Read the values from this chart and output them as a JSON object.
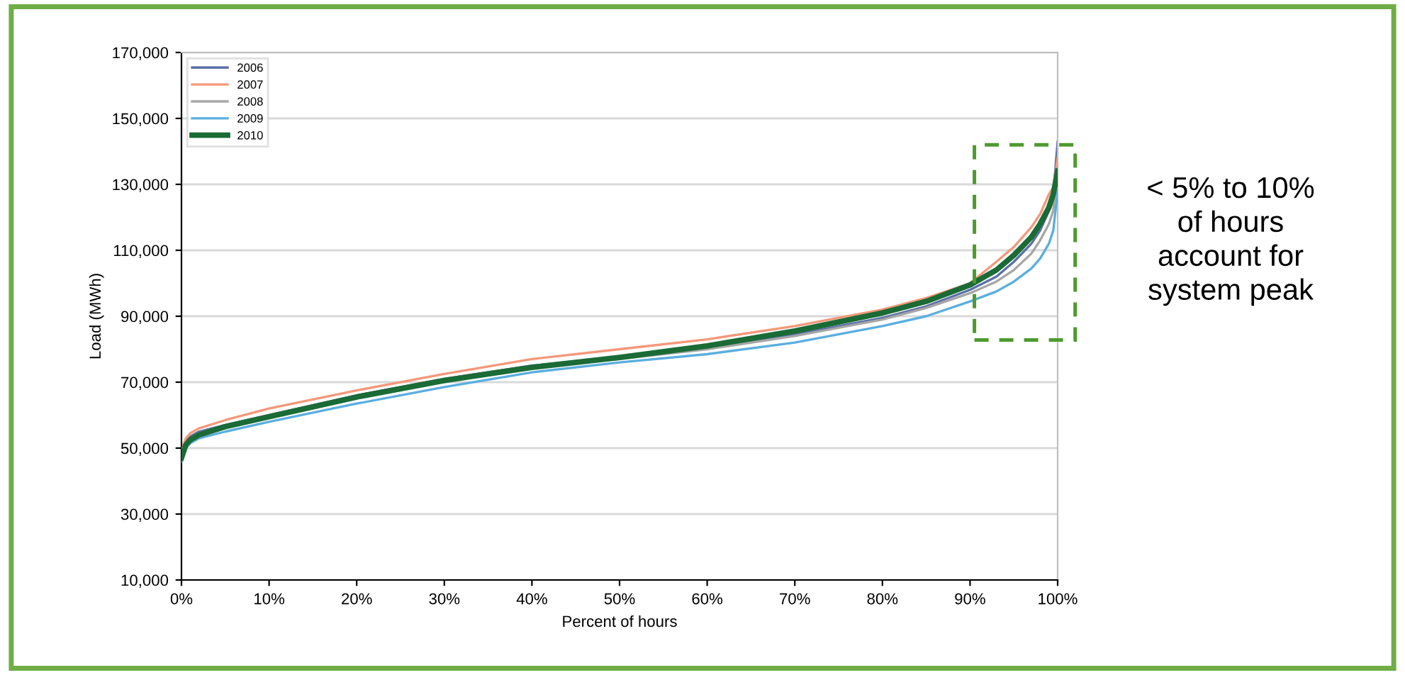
{
  "chart_data": {
    "type": "line",
    "xlabel": "Percent of hours",
    "ylabel": "Load (MWh)",
    "x": [
      0,
      0.5,
      1,
      2,
      5,
      10,
      20,
      30,
      40,
      50,
      60,
      70,
      80,
      85,
      90,
      93,
      95,
      97,
      98,
      99,
      99.5,
      100
    ],
    "series": [
      {
        "name": "2006",
        "color": "#5b6fa8",
        "values": [
          48000,
          52000,
          53500,
          55000,
          57000,
          60000,
          66000,
          71000,
          75000,
          77500,
          80500,
          84500,
          89500,
          93000,
          98000,
          102000,
          106500,
          112000,
          116000,
          122000,
          127000,
          143000
        ]
      },
      {
        "name": "2007",
        "color": "#f4987a",
        "values": [
          49000,
          53000,
          54500,
          56000,
          58500,
          62000,
          67500,
          72500,
          77000,
          80000,
          83000,
          87000,
          92000,
          95500,
          100000,
          106500,
          111000,
          117000,
          121000,
          127000,
          129000,
          138000
        ]
      },
      {
        "name": "2008",
        "color": "#a6a6a6",
        "values": [
          47500,
          51500,
          53000,
          54500,
          56500,
          60000,
          65500,
          70500,
          74500,
          77000,
          80000,
          84000,
          89000,
          92500,
          97000,
          100500,
          104000,
          109000,
          113000,
          118000,
          122000,
          135000
        ]
      },
      {
        "name": "2009",
        "color": "#5aaee0",
        "values": [
          46000,
          50000,
          51500,
          53000,
          55000,
          58000,
          63500,
          68500,
          73000,
          76000,
          78500,
          82000,
          87000,
          90000,
          94500,
          97500,
          100500,
          104500,
          107500,
          112000,
          116000,
          128000
        ]
      },
      {
        "name": "2010",
        "color": "#1a6b35",
        "values": [
          47000,
          51000,
          52500,
          54000,
          56500,
          59500,
          65500,
          70500,
          74500,
          77500,
          81000,
          85500,
          91000,
          94500,
          99500,
          104000,
          108500,
          114000,
          118000,
          123000,
          127000,
          134000
        ]
      }
    ],
    "xlim": [
      0,
      100
    ],
    "xticks": [
      {
        "value": 0,
        "label": "0%"
      },
      {
        "value": 10,
        "label": "10%"
      },
      {
        "value": 20,
        "label": "20%"
      },
      {
        "value": 30,
        "label": "30%"
      },
      {
        "value": 40,
        "label": "40%"
      },
      {
        "value": 50,
        "label": "50%"
      },
      {
        "value": 60,
        "label": "60%"
      },
      {
        "value": 70,
        "label": "70%"
      },
      {
        "value": 80,
        "label": "80%"
      },
      {
        "value": 90,
        "label": "90%"
      },
      {
        "value": 100,
        "label": "100%"
      }
    ],
    "ylim": [
      10000,
      170000
    ],
    "yticks": [
      {
        "value": 10000,
        "label": "10,000"
      },
      {
        "value": 30000,
        "label": "30,000"
      },
      {
        "value": 50000,
        "label": "50,000"
      },
      {
        "value": 70000,
        "label": "70,000"
      },
      {
        "value": 90000,
        "label": "90,000"
      },
      {
        "value": 110000,
        "label": "110,000"
      },
      {
        "value": 130000,
        "label": "130,000"
      },
      {
        "value": 150000,
        "label": "150,000"
      },
      {
        "value": 170000,
        "label": "170,000"
      }
    ],
    "grid": "y",
    "legend": "top left",
    "marker": "none",
    "line_style": "solid",
    "annotations": [
      "< 5% to 10%\nof hours\naccount for\nsystem peak"
    ]
  }
}
